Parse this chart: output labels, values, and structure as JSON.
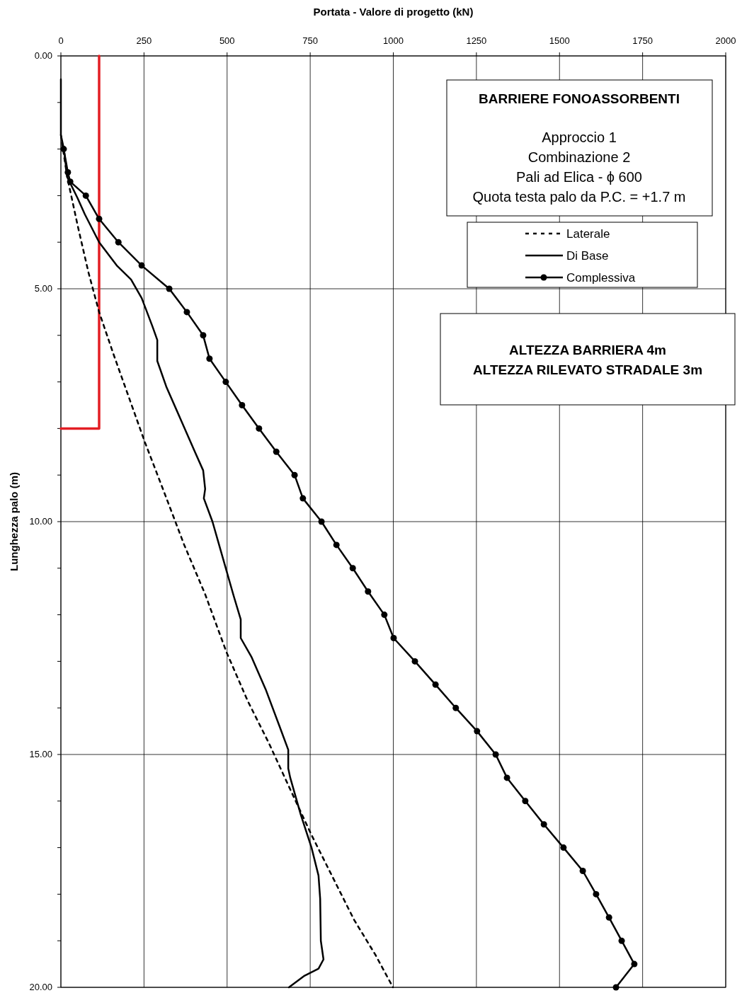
{
  "chart_data": {
    "type": "line",
    "xlabel": "Portata - Valore di progetto (kN)",
    "ylabel": "Lunghezza palo (m)",
    "xlim": [
      0,
      2000
    ],
    "xticks": [
      0,
      250,
      500,
      750,
      1000,
      1250,
      1500,
      1750,
      2000
    ],
    "ylim": [
      20,
      0
    ],
    "yticks": [
      {
        "value": 0,
        "label": "0.00"
      },
      {
        "value": 1,
        "label": null
      },
      {
        "value": 2,
        "label": null
      },
      {
        "value": 3,
        "label": null
      },
      {
        "value": 4,
        "label": null
      },
      {
        "value": 5,
        "label": "5.00"
      },
      {
        "value": 6,
        "label": null
      },
      {
        "value": 7,
        "label": null
      },
      {
        "value": 8,
        "label": null
      },
      {
        "value": 9,
        "label": null
      },
      {
        "value": 10,
        "label": "10.00"
      },
      {
        "value": 11,
        "label": null
      },
      {
        "value": 12,
        "label": null
      },
      {
        "value": 13,
        "label": null
      },
      {
        "value": 14,
        "label": null
      },
      {
        "value": 15,
        "label": "15.00"
      },
      {
        "value": 16,
        "label": null
      },
      {
        "value": 17,
        "label": null
      },
      {
        "value": 18,
        "label": null
      },
      {
        "value": 19,
        "label": null
      },
      {
        "value": 20,
        "label": "20.00"
      }
    ],
    "grid": true,
    "legend": "top right",
    "series": [
      {
        "color": "#e31e24",
        "line_style": "solid",
        "marker": "none",
        "x": [
          115,
          115,
          0
        ],
        "values": [
          0,
          8,
          8
        ]
      },
      {
        "name": "Laterale",
        "color": "#000000",
        "line_style": "dashed",
        "marker": "none",
        "x": [
          0,
          19,
          51,
          83,
          115,
          158,
          211,
          253,
          307,
          371,
          434,
          498,
          562,
          626,
          690,
          754,
          818,
          882,
          946,
          999
        ],
        "values": [
          1.7,
          2.6,
          3.66,
          4.65,
          5.5,
          6.4,
          7.46,
          8.3,
          9.3,
          10.5,
          11.56,
          12.8,
          13.85,
          14.76,
          15.75,
          16.73,
          17.64,
          18.55,
          19.3,
          20
        ]
      },
      {
        "name": "Di Base",
        "color": "#000000",
        "line_style": "solid",
        "marker": "none",
        "x": [
          0,
          0,
          9,
          19,
          50,
          72,
          115,
          168,
          211,
          243,
          275,
          290,
          290,
          317,
          360,
          403,
          428,
          434,
          430,
          456,
          488,
          520,
          541,
          541,
          573,
          616,
          658,
          684,
          684,
          690,
          722,
          754,
          775,
          780,
          782,
          790,
          775,
          733,
          686
        ],
        "values": [
          0.5,
          1.7,
          2.0,
          2.6,
          3.05,
          3.4,
          4.0,
          4.5,
          4.8,
          5.2,
          5.8,
          6.1,
          6.55,
          7.1,
          7.8,
          8.5,
          8.9,
          9.3,
          9.5,
          10.0,
          10.8,
          11.6,
          12.1,
          12.5,
          12.9,
          13.6,
          14.4,
          14.9,
          15.3,
          15.5,
          16.3,
          17.0,
          17.6,
          18.1,
          19.0,
          19.4,
          19.6,
          19.75,
          20
        ]
      },
      {
        "name": "Complessiva",
        "color": "#000000",
        "line_style": "solid",
        "marker": "circle",
        "x": [
          8.5,
          21,
          28,
          75,
          115,
          173,
          243,
          326,
          379,
          428,
          447,
          496,
          545,
          596,
          648,
          703,
          728,
          784,
          829,
          878,
          924,
          973,
          1001,
          1065,
          1127,
          1188,
          1252,
          1308,
          1342,
          1397,
          1453,
          1512,
          1570,
          1610,
          1649,
          1687,
          1725,
          1670
        ],
        "values": [
          2.0,
          2.5,
          2.7,
          3.0,
          3.5,
          4.0,
          4.5,
          5.0,
          5.5,
          6.0,
          6.5,
          7.0,
          7.5,
          8.0,
          8.5,
          9.0,
          9.5,
          10.0,
          10.5,
          11.0,
          11.5,
          12.0,
          12.5,
          13.0,
          13.5,
          14.0,
          14.5,
          15.0,
          15.5,
          16.0,
          16.5,
          17.0,
          17.5,
          18.0,
          18.5,
          19.0,
          19.5,
          20.0
        ]
      }
    ],
    "annotations": [
      "BARRIERE FONOASSORBENTI",
      "Approccio 1",
      "Combinazione 2",
      "Pali ad Elica - ϕ 600",
      "Quota testa palo da P.C. = +1.7 m",
      "ALTEZZA BARRIERA 4m",
      "ALTEZZA RILEVATO STRADALE 3m"
    ]
  }
}
